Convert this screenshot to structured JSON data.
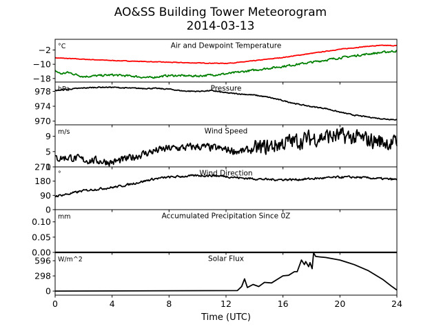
{
  "title": "AO&SS Building Tower Meteorogram",
  "subtitle": "2014-03-13",
  "chart_data": {
    "type": "line",
    "x_axis": {
      "label": "Time (UTC)",
      "range": [
        0,
        24
      ],
      "ticks": [
        0,
        4,
        8,
        12,
        16,
        20,
        24
      ],
      "tick_labels": [
        "0",
        "4",
        "8",
        "12",
        "16",
        "20",
        "24"
      ]
    },
    "panels": [
      {
        "name": "temperature",
        "title": "Air and Dewpoint Temperature",
        "unit": "°C",
        "ylim": [
          -20,
          4
        ],
        "yticks": [
          -18,
          -10,
          -2
        ],
        "ytick_labels": [
          "−18",
          "−10",
          "−2"
        ],
        "series": [
          {
            "color": "#ff0000",
            "noise": 0.15,
            "x": [
              0,
              2,
              4,
              6,
              8,
              10,
              12,
              13,
              14,
              16,
              18,
              20,
              22,
              23,
              24
            ],
            "y": [
              -6.4,
              -7.2,
              -7.9,
              -8.4,
              -8.9,
              -9.3,
              -9.5,
              -8.9,
              -8.0,
              -6.2,
              -3.9,
              -1.6,
              0.1,
              0.6,
              0.4
            ]
          },
          {
            "color": "#008000",
            "noise": 0.5,
            "x": [
              0,
              0.4,
              0.9,
              1.5,
              2,
              4,
              5.5,
              6.5,
              7,
              8,
              10,
              12,
              14,
              16,
              18,
              20,
              22,
              24
            ],
            "y": [
              -13.6,
              -15.4,
              -14.6,
              -15.9,
              -16.9,
              -16.0,
              -16.7,
              -17.6,
              -17.2,
              -16.3,
              -16.6,
              -15.4,
              -13.3,
              -11.2,
              -8.9,
              -6.4,
              -4.2,
              -2.5
            ]
          }
        ]
      },
      {
        "name": "pressure",
        "title": "Pressure",
        "unit": "hPa",
        "ylim": [
          969,
          980.5
        ],
        "yticks": [
          970,
          974,
          978
        ],
        "ytick_labels": [
          "970",
          "974",
          "978"
        ],
        "series": [
          {
            "color": "#000000",
            "noise": 0.12,
            "x": [
              0,
              1,
              2,
              3,
              4,
              5,
              6,
              7,
              8,
              9,
              10,
              11,
              12,
              13,
              14,
              15,
              16,
              17,
              18,
              19,
              20,
              21,
              22,
              23,
              24
            ],
            "y": [
              978.2,
              978.6,
              978.9,
              979.1,
              979.1,
              978.9,
              978.8,
              978.8,
              978.6,
              978.1,
              978.0,
              978.2,
              977.6,
              977.3,
              977.0,
              976.4,
              975.5,
              974.6,
              973.9,
              973.4,
              972.4,
              971.6,
              971.1,
              970.6,
              970.4
            ]
          }
        ]
      },
      {
        "name": "wind-speed",
        "title": "Wind Speed",
        "unit": "m/s",
        "ylim": [
          1,
          12
        ],
        "yticks": [
          1,
          5,
          9
        ],
        "ytick_labels": [
          "1",
          "5",
          "9"
        ],
        "series": [
          {
            "color": "#000000",
            "noise": 0.9,
            "x": [
              0,
              1,
              2,
              3,
              4,
              5,
              6,
              7,
              8,
              9,
              10,
              11,
              12,
              13,
              14,
              15,
              16,
              17,
              18,
              19,
              20,
              21,
              22,
              23,
              24
            ],
            "y": [
              3.2,
              3.5,
              2.8,
              2.6,
              2.2,
              3.0,
              4.2,
              5.2,
              5.8,
              6.0,
              6.3,
              6.0,
              5.5,
              5.0,
              5.6,
              6.2,
              7.2,
              7.8,
              8.4,
              9.0,
              9.0,
              8.6,
              8.0,
              7.6,
              7.0
            ]
          }
        ]
      },
      {
        "name": "wind-direction",
        "title": "Wind Direction",
        "unit": "°",
        "ylim": [
          0,
          270
        ],
        "yticks": [
          0,
          90,
          180,
          270
        ],
        "ytick_labels": [
          "0",
          "90",
          "180",
          "270"
        ],
        "series": [
          {
            "color": "#000000",
            "noise": 6,
            "x": [
              0,
              1,
              2,
              3,
              4,
              5,
              6,
              7,
              8,
              9,
              10,
              11,
              12,
              13,
              14,
              15,
              16,
              17,
              18,
              19,
              20,
              21,
              22,
              23,
              24
            ],
            "y": [
              85,
              100,
              120,
              130,
              140,
              155,
              175,
              195,
              205,
              210,
              215,
              215,
              210,
              200,
              195,
              190,
              190,
              190,
              195,
              200,
              205,
              205,
              200,
              195,
              190
            ]
          }
        ]
      },
      {
        "name": "precipitation",
        "title": "Accumulated Precipitation Since 0Z",
        "unit": "mm",
        "ylim": [
          0,
          0.14
        ],
        "yticks": [
          0.0,
          0.05,
          0.1
        ],
        "ytick_labels": [
          "0.00",
          "0.05",
          "0.10"
        ],
        "series": [
          {
            "color": "#000000",
            "noise": 0,
            "x": [
              0,
              24
            ],
            "y": [
              0,
              0
            ]
          }
        ]
      },
      {
        "name": "solar-flux",
        "title": "Solar Flux",
        "unit": "W/m^2",
        "ylim": [
          -80,
          760
        ],
        "yticks": [
          0,
          298,
          596
        ],
        "ytick_labels": [
          "0",
          "298",
          "596"
        ],
        "series": [
          {
            "color": "#000000",
            "noise": 0,
            "x": [
              0,
              12.8,
              13.1,
              13.3,
              13.5,
              13.9,
              14.3,
              14.7,
              15.2,
              15.6,
              16,
              16.4,
              16.8,
              17,
              17.3,
              17.5,
              17.6,
              17.8,
              17.9,
              18.05,
              18.15,
              18.3,
              18.6,
              19,
              20,
              21,
              22,
              23,
              23.6,
              24
            ],
            "y": [
              0,
              10,
              90,
              240,
              70,
              130,
              90,
              170,
              160,
              230,
              300,
              310,
              380,
              380,
              610,
              520,
              580,
              480,
              560,
              440,
              750,
              680,
              670,
              660,
              610,
              520,
              400,
              230,
              100,
              20
            ]
          }
        ]
      }
    ]
  }
}
